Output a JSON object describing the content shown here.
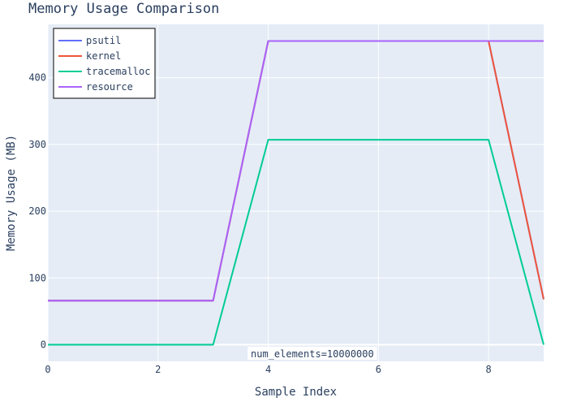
{
  "chart_data": {
    "type": "line",
    "title": "Memory Usage Comparison",
    "xlabel": "Sample Index",
    "ylabel": "Memory Usage (MB)",
    "xlim": [
      0,
      9
    ],
    "ylim": [
      -25,
      480
    ],
    "xticks": [
      0,
      2,
      4,
      6,
      8
    ],
    "yticks": [
      0,
      100,
      200,
      300,
      400
    ],
    "x": [
      0,
      1,
      2,
      3,
      4,
      5,
      6,
      7,
      8,
      9
    ],
    "series": [
      {
        "name": "psutil",
        "color": "#636efa",
        "values": [
          66,
          66,
          66,
          66,
          455,
          455,
          455,
          455,
          455,
          68
        ]
      },
      {
        "name": "kernel",
        "color": "#ef553b",
        "values": [
          66,
          66,
          66,
          66,
          455,
          455,
          455,
          455,
          455,
          68
        ]
      },
      {
        "name": "tracemalloc",
        "color": "#00cc96",
        "values": [
          0,
          0,
          0,
          0,
          307,
          307,
          307,
          307,
          307,
          0
        ]
      },
      {
        "name": "resource",
        "color": "#ab63fa",
        "values": [
          66,
          66,
          66,
          66,
          455,
          455,
          455,
          455,
          455,
          455
        ]
      }
    ],
    "legend_position": "top-left",
    "annotations": [
      {
        "text": "num_elements=10000000",
        "x": 4.8,
        "y": -14
      }
    ],
    "grid": true
  }
}
